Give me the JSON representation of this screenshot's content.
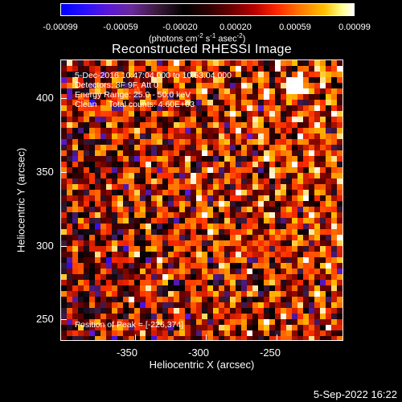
{
  "colorbar": {
    "ticks": [
      "-0.00099",
      "-0.00059",
      "-0.00020",
      "0.00020",
      "0.00059",
      "0.00099"
    ],
    "units_prefix": "(photons cm",
    "units_sup1": "-2",
    "units_mid1": " s",
    "units_sup2": "-1",
    "units_mid2": " asec",
    "units_sup3": "-2",
    "units_suffix": ")"
  },
  "plot": {
    "title": "Reconstructed RHESSI Image",
    "xlabel": "Heliocentric X (arcsec)",
    "ylabel": "Heliocentric Y (arcsec)",
    "xticks": [
      "-350",
      "-300",
      "-250"
    ],
    "yticks": [
      "400",
      "350",
      "300",
      "250"
    ],
    "colormap_colors": [
      "#0000ff",
      "#5a18d8",
      "#3a1a3a",
      "#000000",
      "#6a0000",
      "#ff2a00",
      "#ff7a00",
      "#ffc000",
      "#ffffff"
    ]
  },
  "annotations": {
    "line1": "5-Dec-2016 10:47:04.000 to 10:53:04.000",
    "line2": "Detectors: 3F 9F, Att 0",
    "line3": "Energy Range: 25.0 - 50.0 keV",
    "line4": "Clean     Total counts: 4.60E+03",
    "peak": "Position of Peak = [-226,374]"
  },
  "footer": {
    "timestamp": "5-Sep-2022 16:22"
  }
}
